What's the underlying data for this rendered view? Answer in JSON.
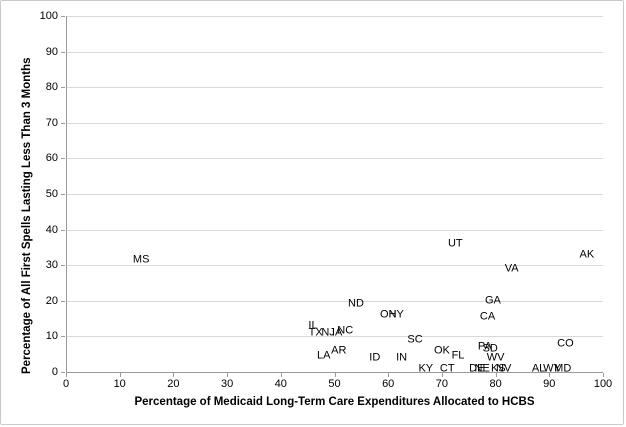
{
  "chart_data": {
    "type": "scatter",
    "title": "",
    "xlabel": "Percentage of Medicaid Long-Term Care Expenditures  Allocated to HCBS",
    "ylabel": "Percentage of All First Spells Lasting Less Than 3 Months",
    "xlim": [
      0,
      100
    ],
    "ylim": [
      0,
      100
    ],
    "xticks": [
      0,
      10,
      20,
      30,
      40,
      50,
      60,
      70,
      80,
      90,
      100
    ],
    "yticks": [
      0,
      10,
      20,
      30,
      40,
      50,
      60,
      70,
      80,
      90,
      100
    ],
    "grid": "horizontal-only",
    "legend": "none",
    "marker": "state-abbreviation-text-labels",
    "points": [
      {
        "label": "MS",
        "x": 14,
        "y": 31.5
      },
      {
        "label": "UT",
        "x": 72.5,
        "y": 36
      },
      {
        "label": "AK",
        "x": 97,
        "y": 33
      },
      {
        "label": "VA",
        "x": 83,
        "y": 29
      },
      {
        "label": "GA",
        "x": 79.5,
        "y": 20
      },
      {
        "label": "CA",
        "x": 78.5,
        "y": 15.5
      },
      {
        "label": "ND",
        "x": 54,
        "y": 19
      },
      {
        "label": "OH",
        "x": 60,
        "y": 16
      },
      {
        "label": "NY",
        "x": 61.5,
        "y": 16
      },
      {
        "label": "IL",
        "x": 46,
        "y": 12.8
      },
      {
        "label": "TX",
        "x": 46.5,
        "y": 11
      },
      {
        "label": "NJ",
        "x": 48.8,
        "y": 11
      },
      {
        "label": "IA",
        "x": 50.5,
        "y": 11
      },
      {
        "label": "NC",
        "x": 52,
        "y": 11.5
      },
      {
        "label": "LA",
        "x": 48,
        "y": 4.5
      },
      {
        "label": "AR",
        "x": 50.8,
        "y": 6
      },
      {
        "label": "ID",
        "x": 57.5,
        "y": 4
      },
      {
        "label": "IN",
        "x": 62.5,
        "y": 4
      },
      {
        "label": "SC",
        "x": 65,
        "y": 9
      },
      {
        "label": "OK",
        "x": 70,
        "y": 6
      },
      {
        "label": "FL",
        "x": 73,
        "y": 4.5
      },
      {
        "label": "KY",
        "x": 67,
        "y": 0.8
      },
      {
        "label": "CT",
        "x": 71,
        "y": 0.8
      },
      {
        "label": "PA",
        "x": 78,
        "y": 7
      },
      {
        "label": "SD",
        "x": 79,
        "y": 6.5
      },
      {
        "label": "WV",
        "x": 80,
        "y": 4
      },
      {
        "label": "DE",
        "x": 76.5,
        "y": 0.8
      },
      {
        "label": "NE",
        "x": 77.5,
        "y": 0.8
      },
      {
        "label": "KS",
        "x": 80.5,
        "y": 0.8
      },
      {
        "label": "NV",
        "x": 81.5,
        "y": 0.8
      },
      {
        "label": "AL",
        "x": 88,
        "y": 0.8
      },
      {
        "label": "WY",
        "x": 90.5,
        "y": 0.8
      },
      {
        "label": "MD",
        "x": 92.5,
        "y": 0.8
      },
      {
        "label": "CO",
        "x": 93,
        "y": 8
      }
    ]
  },
  "colors": {
    "gridline": "#d9d9d9",
    "axis": "#9a9a9a",
    "text": "#000000",
    "background": "#ffffff",
    "frame_border": "#c9c9c9"
  }
}
